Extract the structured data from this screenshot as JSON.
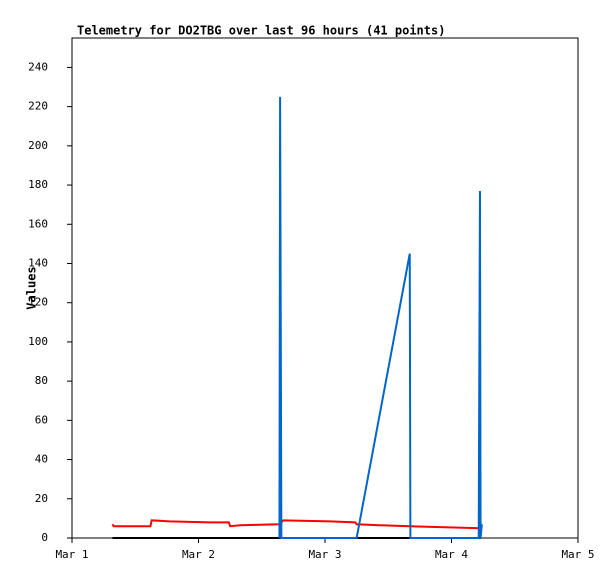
{
  "chart_data": {
    "type": "line",
    "title": "Telemetry for DO2TBG over last 96 hours (41 points)",
    "y_label": "Values",
    "xlim": [
      1,
      5
    ],
    "xticks": [
      {
        "value": 1,
        "label": "Mar 1"
      },
      {
        "value": 2,
        "label": "Mar 2"
      },
      {
        "value": 3,
        "label": "Mar 3"
      },
      {
        "value": 4,
        "label": "Mar 4"
      },
      {
        "value": 5,
        "label": "Mar 5"
      }
    ],
    "ylim": [
      0,
      255
    ],
    "yticks": [
      0,
      20,
      40,
      60,
      80,
      100,
      120,
      140,
      160,
      180,
      200,
      220,
      240
    ],
    "grid": false,
    "series": [
      {
        "color": "#000000",
        "x": [
          1.32,
          4.23
        ],
        "values": [
          0,
          0
        ]
      },
      {
        "color": "#ff0000",
        "x": [
          1.32,
          1.33,
          1.62,
          1.63,
          1.77,
          2.09,
          2.24,
          2.25,
          2.33,
          2.64,
          2.67,
          3.04,
          3.24,
          3.25,
          3.43,
          3.67,
          4.23
        ],
        "values": [
          7,
          6,
          6,
          9,
          8.5,
          8,
          8,
          6,
          6.5,
          7,
          9,
          8.5,
          8,
          7,
          6.5,
          6,
          5
        ]
      },
      {
        "color": "#0066cc",
        "x": [
          2.64,
          2.645,
          2.655,
          3.25,
          3.67,
          3.675,
          4.215,
          4.22,
          4.225,
          4.23,
          4.24
        ],
        "values": [
          0,
          225,
          0,
          0,
          145,
          0,
          0,
          88,
          177,
          0,
          7
        ]
      }
    ]
  }
}
